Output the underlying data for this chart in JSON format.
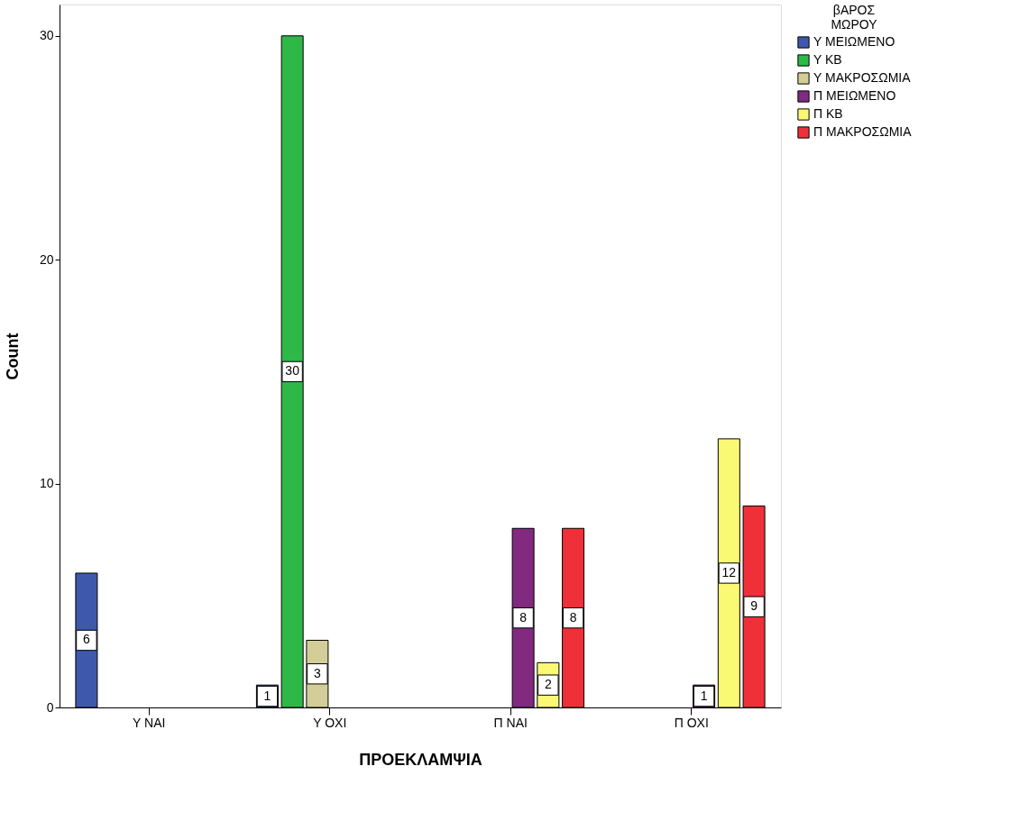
{
  "chart_data": {
    "type": "bar",
    "xlabel": "ΠΡΟΕΚΛΑΜΨΙΑ",
    "ylabel": "Count",
    "legend_title": "βΑΡΟΣ ΜΩΡΟΥ",
    "categories": [
      "Υ ΝΑΙ",
      "Υ ΟΧΙ",
      "Π ΝΑΙ",
      "Π ΟΧΙ"
    ],
    "series": [
      {
        "name": "Υ ΜΕΙΩΜΕΝΟ",
        "color": "#3e58ac",
        "values": [
          6,
          1,
          null,
          null
        ]
      },
      {
        "name": "Υ ΚΒ",
        "color": "#2eb848",
        "values": [
          null,
          30,
          null,
          null
        ]
      },
      {
        "name": "Υ ΜΑΚΡΟΣΩΜΙΑ",
        "color": "#d3ce97",
        "values": [
          null,
          3,
          null,
          null
        ]
      },
      {
        "name": "Π ΜΕΙΩΜΕΝΟ",
        "color": "#812a7f",
        "values": [
          null,
          null,
          8,
          1
        ]
      },
      {
        "name": "Π ΚΒ",
        "color": "#fbf873",
        "values": [
          null,
          null,
          2,
          12
        ]
      },
      {
        "name": "Π ΜΑΚΡΟΣΩΜΙΑ",
        "color": "#ef3038",
        "values": [
          null,
          null,
          8,
          9
        ]
      }
    ],
    "ylim": [
      0,
      31.4
    ],
    "yticks": [
      0,
      10,
      20,
      30
    ],
    "grid": false,
    "legend": "top right",
    "data_labels": true
  }
}
